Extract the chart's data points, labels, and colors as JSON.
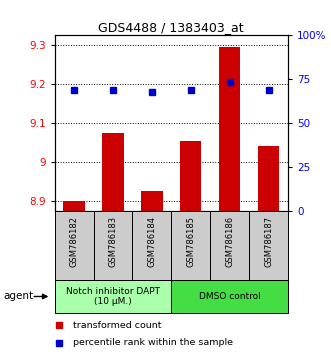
{
  "title": "GDS4488 / 1383403_at",
  "samples": [
    "GSM786182",
    "GSM786183",
    "GSM786184",
    "GSM786185",
    "GSM786186",
    "GSM786187"
  ],
  "red_values": [
    8.9,
    9.075,
    8.925,
    9.055,
    9.295,
    9.04
  ],
  "blue_values": [
    9.185,
    9.185,
    9.18,
    9.185,
    9.205,
    9.185
  ],
  "ylim_left": [
    8.875,
    9.325
  ],
  "ylim_right": [
    0,
    100
  ],
  "yticks_left": [
    8.9,
    9.0,
    9.1,
    9.2,
    9.3
  ],
  "ytick_labels_left": [
    "8.9",
    "9",
    "9.1",
    "9.2",
    "9.3"
  ],
  "yticks_right": [
    0,
    25,
    50,
    75,
    100
  ],
  "ytick_labels_right": [
    "0",
    "25",
    "50",
    "75",
    "100%"
  ],
  "groups": [
    {
      "label": "Notch inhibitor DAPT\n(10 μM.)",
      "n": 3,
      "color": "#aaffaa"
    },
    {
      "label": "DMSO control",
      "n": 3,
      "color": "#44dd44"
    }
  ],
  "bar_color": "#CC0000",
  "dot_color": "#0000CC",
  "legend_items": [
    {
      "color": "#CC0000",
      "label": "transformed count"
    },
    {
      "color": "#0000CC",
      "label": "percentile rank within the sample"
    }
  ],
  "bar_width": 0.55,
  "fig_width": 3.31,
  "fig_height": 3.54,
  "dpi": 100
}
